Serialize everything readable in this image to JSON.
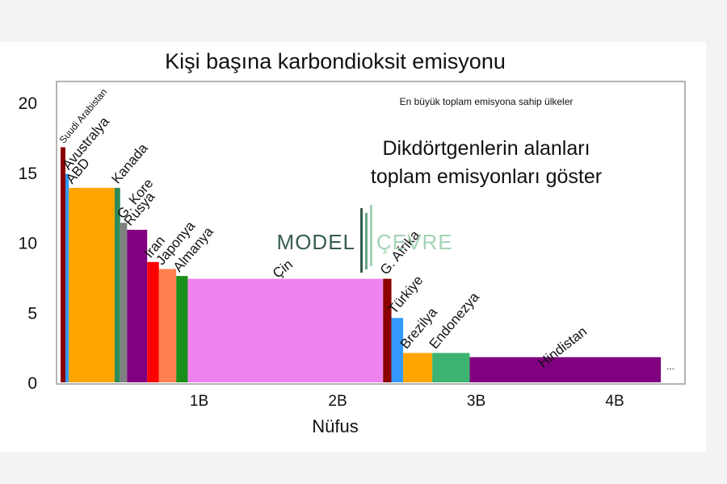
{
  "chart_data": {
    "type": "bar",
    "variant": "variable-width",
    "title": "Kişi başına karbondioksit emisyonu",
    "subtitle": "En büyük toplam emisyona sahip ülkeler",
    "annotation": [
      "Dikdörtgenlerin alanları",
      "toplam emisyonları göster"
    ],
    "xlabel": "Nüfus",
    "ylabel": "",
    "xlim": [
      0,
      4.5
    ],
    "ylim": [
      0,
      21.5
    ],
    "yticks": [
      "0",
      "5",
      "10",
      "15",
      "20"
    ],
    "ytick_values": [
      0,
      5,
      10,
      15,
      20
    ],
    "xticks": [
      "1B",
      "2B",
      "3B",
      "4B"
    ],
    "xtick_values": [
      1,
      2,
      3,
      4
    ],
    "x_unit": "billion people",
    "y_unit": "tonnes CO2 per person",
    "grid": false,
    "legend": "none",
    "continuation_label": "...",
    "series": [
      {
        "name": "Suudi Arabistan",
        "population": 0.035,
        "value": 16.8,
        "color": "#8b0000"
      },
      {
        "name": "Avustralya",
        "population": 0.025,
        "value": 14.9,
        "color": "#3399ff"
      },
      {
        "name": "ABD",
        "population": 0.33,
        "value": 13.9,
        "color": "#ffa500"
      },
      {
        "name": "Kanada",
        "population": 0.04,
        "value": 13.9,
        "color": "#2e8b57"
      },
      {
        "name": "G. Kore",
        "population": 0.05,
        "value": 11.4,
        "color": "#808080"
      },
      {
        "name": "Rusya",
        "population": 0.145,
        "value": 10.9,
        "color": "#800080"
      },
      {
        "name": "Iran",
        "population": 0.085,
        "value": 8.6,
        "color": "#ff0000"
      },
      {
        "name": "Japonya",
        "population": 0.125,
        "value": 8.1,
        "color": "#ff7f50"
      },
      {
        "name": "Almanya",
        "population": 0.083,
        "value": 7.6,
        "color": "#1a8f1a"
      },
      {
        "name": "Çin",
        "population": 1.41,
        "value": 7.4,
        "color": "#ee82ee"
      },
      {
        "name": "G. Afrika",
        "population": 0.06,
        "value": 7.4,
        "color": "#8b0000"
      },
      {
        "name": "Türkiye",
        "population": 0.085,
        "value": 4.6,
        "color": "#3399ff"
      },
      {
        "name": "Brezilya",
        "population": 0.21,
        "value": 2.1,
        "color": "#ffa500"
      },
      {
        "name": "Endonezya",
        "population": 0.27,
        "value": 2.1,
        "color": "#3cb371"
      },
      {
        "name": "Hindistan",
        "population": 1.38,
        "value": 1.8,
        "color": "#800080"
      }
    ]
  },
  "watermark": {
    "left": "MODEL",
    "right": "ÇEVRE",
    "left_color": "#1f4d3a",
    "right_color": "#9ccfae"
  }
}
